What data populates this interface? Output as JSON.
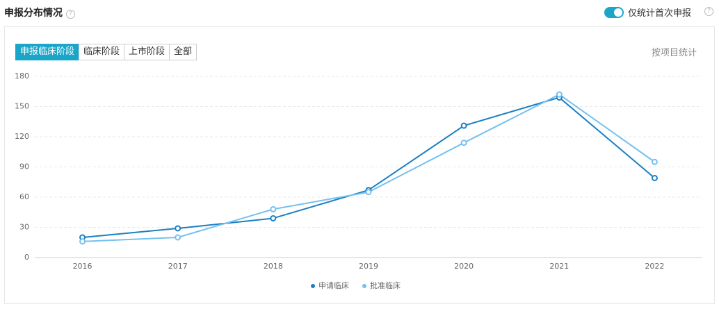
{
  "header": {
    "title": "申报分布情况",
    "toggle_label": "仅统计首次申报"
  },
  "tabs": [
    "申报临床阶段",
    "临床阶段",
    "上市阶段",
    "全部"
  ],
  "view_label": "按项目统计",
  "chart_data": {
    "type": "line",
    "categories": [
      "2016",
      "2017",
      "2018",
      "2019",
      "2020",
      "2021",
      "2022"
    ],
    "series": [
      {
        "name": "申请临床",
        "color": "#1a7fc1",
        "values": [
          20,
          29,
          39,
          67,
          131,
          159,
          79
        ]
      },
      {
        "name": "批准临床",
        "color": "#74c0f0",
        "values": [
          16,
          20,
          48,
          65,
          114,
          162,
          95
        ]
      }
    ],
    "ylim": [
      0,
      180
    ],
    "yticks": [
      0,
      30,
      60,
      90,
      120,
      150,
      180
    ],
    "grid": true
  }
}
